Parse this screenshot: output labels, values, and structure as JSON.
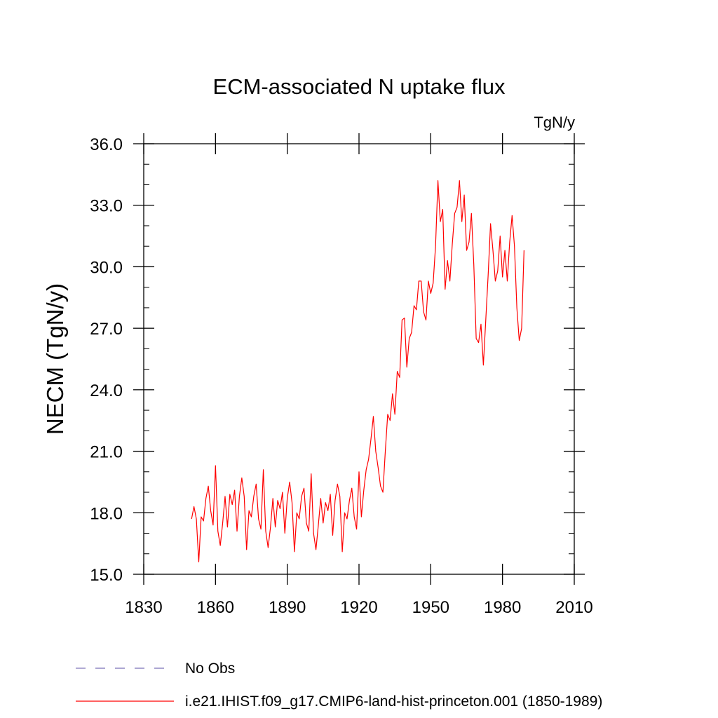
{
  "chart_data": {
    "type": "line",
    "title": "ECM-associated N uptake flux",
    "units_label": "TgN/y",
    "xlabel": "",
    "ylabel": "NECM  (TgN/y)",
    "xlim": [
      1830,
      2010
    ],
    "ylim": [
      15.0,
      36.0
    ],
    "x_ticks": [
      "1830",
      "1860",
      "1890",
      "1920",
      "1950",
      "1980",
      "2010"
    ],
    "y_ticks": [
      "15.0",
      "18.0",
      "21.0",
      "24.0",
      "27.0",
      "30.0",
      "33.0",
      "36.0"
    ],
    "grid": false,
    "legend_position": "bottom-left",
    "series": [
      {
        "name": "No Obs",
        "style": "dashed",
        "color": "#7b70b8",
        "x": [],
        "y": []
      },
      {
        "name": "i.e21.IHIST.f09_g17.CMIP6-land-hist-princeton.001 (1850-1989)",
        "style": "solid",
        "color": "#ff0000",
        "x": [
          1850,
          1851,
          1852,
          1853,
          1854,
          1855,
          1856,
          1857,
          1858,
          1859,
          1860,
          1861,
          1862,
          1863,
          1864,
          1865,
          1866,
          1867,
          1868,
          1869,
          1870,
          1871,
          1872,
          1873,
          1874,
          1875,
          1876,
          1877,
          1878,
          1879,
          1880,
          1881,
          1882,
          1883,
          1884,
          1885,
          1886,
          1887,
          1888,
          1889,
          1890,
          1891,
          1892,
          1893,
          1894,
          1895,
          1896,
          1897,
          1898,
          1899,
          1900,
          1901,
          1902,
          1903,
          1904,
          1905,
          1906,
          1907,
          1908,
          1909,
          1910,
          1911,
          1912,
          1913,
          1914,
          1915,
          1916,
          1917,
          1918,
          1919,
          1920,
          1921,
          1922,
          1923,
          1924,
          1925,
          1926,
          1927,
          1928,
          1929,
          1930,
          1931,
          1932,
          1933,
          1934,
          1935,
          1936,
          1937,
          1938,
          1939,
          1940,
          1941,
          1942,
          1943,
          1944,
          1945,
          1946,
          1947,
          1948,
          1949,
          1950,
          1951,
          1952,
          1953,
          1954,
          1955,
          1956,
          1957,
          1958,
          1959,
          1960,
          1961,
          1962,
          1963,
          1964,
          1965,
          1966,
          1967,
          1968,
          1969,
          1970,
          1971,
          1972,
          1973,
          1974,
          1975,
          1976,
          1977,
          1978,
          1979,
          1980,
          1981,
          1982,
          1983,
          1984,
          1985,
          1986,
          1987,
          1988,
          1989
        ],
        "y": [
          17.7,
          18.3,
          17.7,
          15.6,
          17.8,
          17.6,
          18.7,
          19.3,
          18.1,
          17.4,
          20.3,
          17.1,
          16.4,
          17.5,
          18.8,
          17.3,
          18.9,
          18.4,
          19.1,
          17.1,
          18.8,
          19.7,
          18.8,
          16.2,
          18.1,
          17.8,
          18.8,
          19.4,
          17.7,
          17.2,
          20.1,
          17.1,
          16.3,
          17.3,
          18.7,
          17.3,
          18.6,
          18.2,
          19.0,
          17.0,
          18.7,
          19.5,
          18.5,
          16.1,
          18.0,
          17.7,
          18.8,
          19.2,
          17.5,
          17.1,
          19.9,
          17.0,
          16.2,
          17.4,
          18.7,
          17.5,
          18.5,
          18.1,
          18.9,
          16.9,
          18.6,
          19.4,
          18.8,
          16.1,
          18.0,
          17.7,
          18.6,
          19.2,
          17.8,
          17.2,
          20.0,
          17.8,
          19.1,
          20.1,
          20.6,
          21.6,
          22.7,
          21.0,
          20.2,
          19.3,
          19.0,
          21.0,
          22.8,
          22.5,
          23.8,
          22.8,
          24.9,
          24.6,
          27.4,
          27.5,
          25.1,
          26.5,
          26.8,
          28.1,
          27.9,
          29.3,
          29.3,
          27.8,
          27.4,
          29.3,
          28.7,
          29.2,
          31.0,
          34.2,
          32.2,
          32.8,
          28.9,
          30.3,
          29.3,
          31.1,
          32.6,
          32.9,
          34.2,
          32.2,
          33.5,
          30.8,
          31.2,
          32.6,
          30.1,
          26.5,
          26.3,
          27.2,
          25.2,
          27.4,
          29.6,
          32.1,
          30.8,
          29.3,
          29.8,
          31.5,
          29.5,
          30.8,
          29.3,
          31.2,
          32.5,
          31.0,
          28.0,
          26.4,
          27.0,
          30.8
        ]
      }
    ]
  }
}
